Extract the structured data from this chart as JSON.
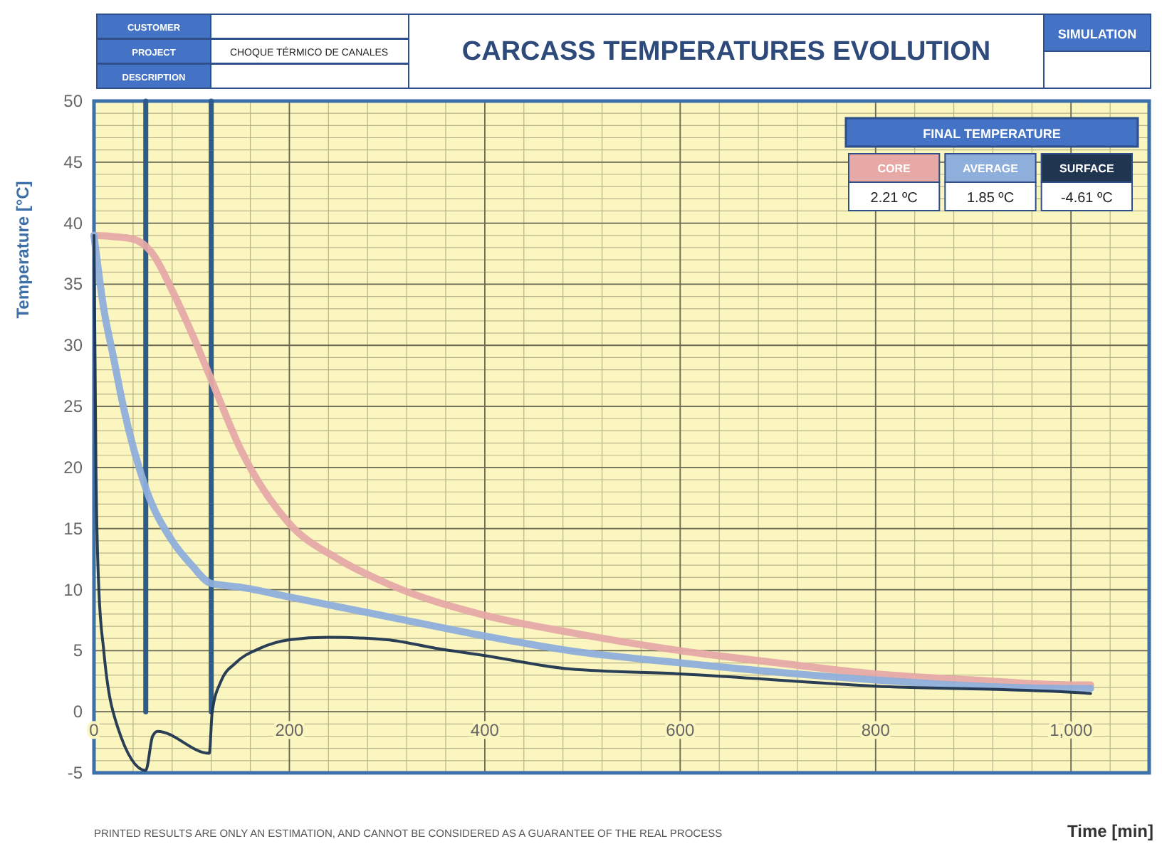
{
  "chart_data": {
    "type": "line",
    "title": "CARCASS TEMPERATURES EVOLUTION",
    "ylabel": "Temperature [°C]",
    "xlabel": "Time [min]",
    "annotations": [
      "PRINTED RESULTS ARE ONLY AN ESTIMATION, AND CANNOT BE CONSIDERED AS A GUARANTEE OF THE REAL PROCESS",
      "CUSTOMER",
      "PROJECT",
      "DESCRIPTION",
      "CHOQUE TÉRMICO DE CANALES",
      "SIMULATION",
      "FINAL TEMPERATURE",
      "2.21 ºC",
      "1.85 ºC",
      "-4.61 ºC"
    ],
    "xlim": [
      0,
      1080
    ],
    "xticks": [
      0,
      200,
      400,
      600,
      800,
      {
        "value": 1000,
        "label": "1,000"
      }
    ],
    "ylim": [
      -5,
      50
    ],
    "yticks": [
      -5,
      0,
      5,
      10,
      15,
      20,
      25,
      30,
      35,
      40,
      45,
      50
    ],
    "grid": true,
    "legend": "top right",
    "line_style": "solid",
    "marker": "none",
    "ref_lines": [
      {
        "axis": "x",
        "value": 53,
        "color": "#2e5c8a"
      },
      {
        "axis": "x",
        "value": 120,
        "color": "#2e5c8a"
      }
    ],
    "series": [
      {
        "name": "CORE",
        "color": "#e6a9a6",
        "x": [
          0,
          20,
          40,
          60,
          80,
          100,
          120,
          150,
          200,
          250,
          300,
          400,
          487,
          600,
          700,
          800,
          900,
          1000,
          1020
        ],
        "values": [
          39,
          38.9,
          38.7,
          37.5,
          34.5,
          31,
          27.2,
          21.5,
          15.4,
          12.5,
          10.5,
          7.9,
          6.5,
          5,
          4,
          3.1,
          2.6,
          2.2,
          2.2
        ]
      },
      {
        "name": "AVERAGE",
        "color": "#8eaedb",
        "x": [
          0,
          10,
          20,
          30,
          53,
          80,
          100,
          120,
          150,
          200,
          300,
          400,
          487,
          600,
          800,
          1000,
          1020
        ],
        "values": [
          39,
          33,
          29,
          25,
          18.3,
          14,
          12,
          10.5,
          10.2,
          9.4,
          7.8,
          6.2,
          5,
          4,
          2.6,
          1.9,
          1.9
        ]
      },
      {
        "name": "SURFACE",
        "color": "#1f3550",
        "x": [
          0,
          2,
          5,
          10,
          24,
          53,
          60,
          65,
          118,
          121,
          130,
          145,
          170,
          200,
          240,
          300,
          350,
          400,
          487,
          600,
          800,
          1000,
          1020
        ],
        "values": [
          39,
          20,
          10,
          5,
          -1.2,
          -4.8,
          -2,
          -1.6,
          -3.4,
          0,
          2.5,
          4,
          5.2,
          5.9,
          6.1,
          5.9,
          5.2,
          4.6,
          3.5,
          3.1,
          2.1,
          1.6,
          1.5
        ]
      }
    ]
  }
}
